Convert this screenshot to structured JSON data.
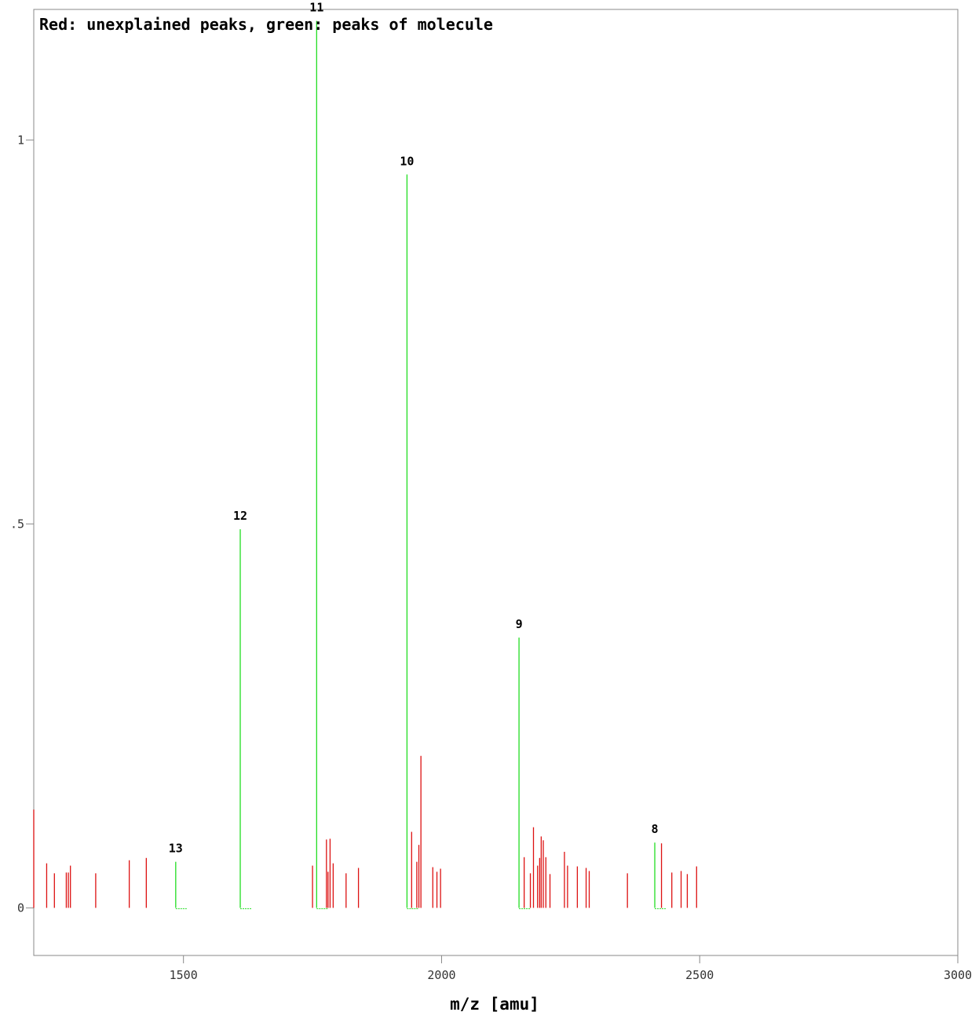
{
  "chart_data": {
    "type": "bar",
    "title": "Red: unexplained peaks, green: peaks of molecule",
    "xlabel": "m/z [amu]",
    "ylabel": "",
    "xlim": [
      1210,
      3000
    ],
    "ylim": [
      -0.062,
      1.17
    ],
    "x_ticks": [
      1500,
      2000,
      2500,
      3000
    ],
    "x_tick_labels": [
      "1500",
      "2000",
      "2500",
      "3000"
    ],
    "y_ticks": [
      0,
      0.5,
      1
    ],
    "y_tick_labels": [
      "0",
      ".5",
      "1"
    ],
    "grid": false,
    "colors": {
      "explained": "#22dd22",
      "unexplained": "#dd1111",
      "axis": "#888888"
    },
    "series": [
      {
        "name": "peaks of molecule",
        "color": "#22dd22",
        "points": [
          {
            "x": 1485,
            "y": 0.06,
            "label": "13"
          },
          {
            "x": 1610,
            "y": 0.493,
            "label": "12"
          },
          {
            "x": 1758,
            "y": 1.155,
            "label": "11"
          },
          {
            "x": 1933,
            "y": 0.955,
            "label": "10"
          },
          {
            "x": 2150,
            "y": 0.352,
            "label": "9"
          },
          {
            "x": 2413,
            "y": 0.085,
            "label": "8"
          }
        ]
      },
      {
        "name": "unexplained peaks",
        "color": "#dd1111",
        "points": [
          {
            "x": 1210,
            "y": 0.128
          },
          {
            "x": 1235,
            "y": 0.058
          },
          {
            "x": 1250,
            "y": 0.045
          },
          {
            "x": 1273,
            "y": 0.046
          },
          {
            "x": 1277,
            "y": 0.046
          },
          {
            "x": 1281,
            "y": 0.055
          },
          {
            "x": 1330,
            "y": 0.045
          },
          {
            "x": 1395,
            "y": 0.062
          },
          {
            "x": 1428,
            "y": 0.065
          },
          {
            "x": 1750,
            "y": 0.055
          },
          {
            "x": 1777,
            "y": 0.089
          },
          {
            "x": 1780,
            "y": 0.047
          },
          {
            "x": 1784,
            "y": 0.09
          },
          {
            "x": 1790,
            "y": 0.058
          },
          {
            "x": 1815,
            "y": 0.045
          },
          {
            "x": 1839,
            "y": 0.052
          },
          {
            "x": 1942,
            "y": 0.099
          },
          {
            "x": 1952,
            "y": 0.06
          },
          {
            "x": 1956,
            "y": 0.082
          },
          {
            "x": 1960,
            "y": 0.198
          },
          {
            "x": 1983,
            "y": 0.053
          },
          {
            "x": 1991,
            "y": 0.047
          },
          {
            "x": 1998,
            "y": 0.051
          },
          {
            "x": 2160,
            "y": 0.066
          },
          {
            "x": 2172,
            "y": 0.045
          },
          {
            "x": 2178,
            "y": 0.105
          },
          {
            "x": 2186,
            "y": 0.055
          },
          {
            "x": 2190,
            "y": 0.065
          },
          {
            "x": 2193,
            "y": 0.093
          },
          {
            "x": 2197,
            "y": 0.088
          },
          {
            "x": 2202,
            "y": 0.066
          },
          {
            "x": 2210,
            "y": 0.044
          },
          {
            "x": 2238,
            "y": 0.073
          },
          {
            "x": 2244,
            "y": 0.055
          },
          {
            "x": 2263,
            "y": 0.054
          },
          {
            "x": 2280,
            "y": 0.052
          },
          {
            "x": 2286,
            "y": 0.048
          },
          {
            "x": 2360,
            "y": 0.045
          },
          {
            "x": 2426,
            "y": 0.084
          },
          {
            "x": 2446,
            "y": 0.046
          },
          {
            "x": 2464,
            "y": 0.048
          },
          {
            "x": 2476,
            "y": 0.044
          },
          {
            "x": 2494,
            "y": 0.054
          }
        ]
      }
    ]
  }
}
